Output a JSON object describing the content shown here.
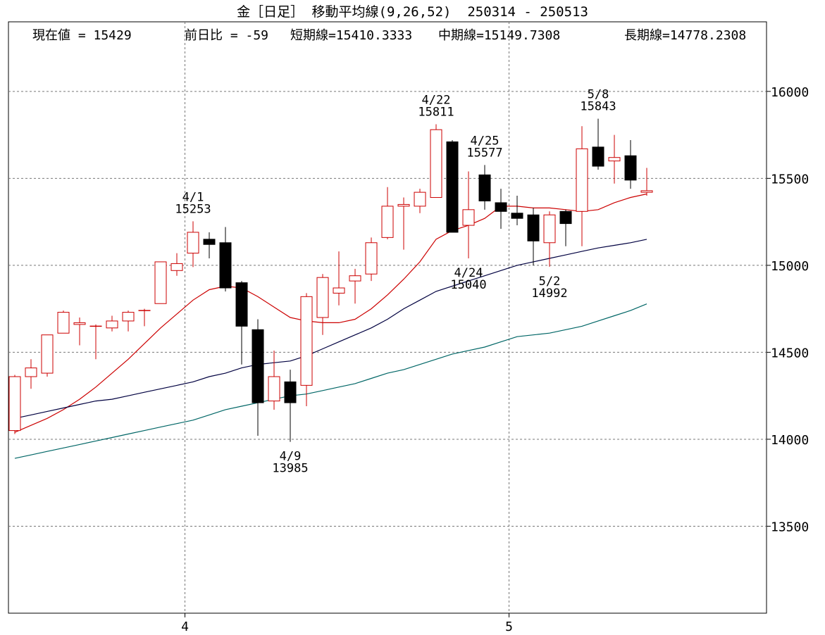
{
  "header": {
    "title": "金［日足］ 移動平均線(9,26,52)  250314 - 250513",
    "current_value": "現在値 = 15429",
    "prev_diff": "前日比 = -59",
    "short_ma": "短期線=15410.3333",
    "mid_ma": "中期線=15149.7308",
    "long_ma": "長期線=14778.2308"
  },
  "colors": {
    "up_candle": "#cc0000",
    "down_candle": "#000000",
    "short_ma": "#cc0000",
    "mid_ma": "#000040",
    "long_ma": "#006666",
    "grid": "#777777"
  },
  "chart_data": {
    "type": "candlestick",
    "ylim": [
      13000,
      16400
    ],
    "ytick_values": [
      13500,
      14000,
      14500,
      15000,
      15500,
      16000
    ],
    "ytick_labels": [
      "13500",
      "14000",
      "14500",
      "15000",
      "15500",
      "16000"
    ],
    "month_labels": [
      {
        "index": 10.5,
        "label": "4"
      },
      {
        "index": 30.5,
        "label": "5"
      }
    ],
    "candles": [
      {
        "o": 14050,
        "h": 14370,
        "l": 14030,
        "c": 14360
      },
      {
        "o": 14360,
        "h": 14460,
        "l": 14290,
        "c": 14410
      },
      {
        "o": 14380,
        "h": 14600,
        "l": 14360,
        "c": 14600
      },
      {
        "o": 14610,
        "h": 14740,
        "l": 14610,
        "c": 14730
      },
      {
        "o": 14660,
        "h": 14700,
        "l": 14540,
        "c": 14670
      },
      {
        "o": 14650,
        "h": 14660,
        "l": 14460,
        "c": 14650
      },
      {
        "o": 14640,
        "h": 14710,
        "l": 14620,
        "c": 14680
      },
      {
        "o": 14680,
        "h": 14740,
        "l": 14620,
        "c": 14730
      },
      {
        "o": 14740,
        "h": 14750,
        "l": 14650,
        "c": 14740
      },
      {
        "o": 14780,
        "h": 15020,
        "l": 14780,
        "c": 15020
      },
      {
        "o": 14970,
        "h": 15070,
        "l": 14940,
        "c": 15010
      },
      {
        "o": 15070,
        "h": 15253,
        "l": 14990,
        "c": 15190
      },
      {
        "o": 15150,
        "h": 15190,
        "l": 15040,
        "c": 15120
      },
      {
        "o": 15130,
        "h": 15220,
        "l": 14850,
        "c": 14870
      },
      {
        "o": 14900,
        "h": 14910,
        "l": 14430,
        "c": 14650
      },
      {
        "o": 14630,
        "h": 14690,
        "l": 14020,
        "c": 14210
      },
      {
        "o": 14220,
        "h": 14510,
        "l": 14170,
        "c": 14360
      },
      {
        "o": 14330,
        "h": 14400,
        "l": 13985,
        "c": 14210
      },
      {
        "o": 14310,
        "h": 14840,
        "l": 14190,
        "c": 14820
      },
      {
        "o": 14700,
        "h": 14950,
        "l": 14600,
        "c": 14930
      },
      {
        "o": 14840,
        "h": 15080,
        "l": 14770,
        "c": 14870
      },
      {
        "o": 14910,
        "h": 14980,
        "l": 14780,
        "c": 14940
      },
      {
        "o": 14950,
        "h": 15160,
        "l": 14910,
        "c": 15130
      },
      {
        "o": 15160,
        "h": 15450,
        "l": 15150,
        "c": 15340
      },
      {
        "o": 15340,
        "h": 15390,
        "l": 15090,
        "c": 15350
      },
      {
        "o": 15340,
        "h": 15440,
        "l": 15300,
        "c": 15420
      },
      {
        "o": 15390,
        "h": 15811,
        "l": 15390,
        "c": 15780
      },
      {
        "o": 15710,
        "h": 15720,
        "l": 15190,
        "c": 15190
      },
      {
        "o": 15230,
        "h": 15540,
        "l": 15040,
        "c": 15320
      },
      {
        "o": 15520,
        "h": 15577,
        "l": 15320,
        "c": 15370
      },
      {
        "o": 15360,
        "h": 15440,
        "l": 15210,
        "c": 15310
      },
      {
        "o": 15300,
        "h": 15400,
        "l": 15230,
        "c": 15270
      },
      {
        "o": 15290,
        "h": 15330,
        "l": 15000,
        "c": 15140
      },
      {
        "o": 15130,
        "h": 15310,
        "l": 14992,
        "c": 15290
      },
      {
        "o": 15310,
        "h": 15320,
        "l": 15110,
        "c": 15240
      },
      {
        "o": 15310,
        "h": 15800,
        "l": 15110,
        "c": 15670
      },
      {
        "o": 15680,
        "h": 15843,
        "l": 15550,
        "c": 15570
      },
      {
        "o": 15600,
        "h": 15750,
        "l": 15470,
        "c": 15620
      },
      {
        "o": 15630,
        "h": 15720,
        "l": 15440,
        "c": 15490
      },
      {
        "o": 15420,
        "h": 15560,
        "l": 15400,
        "c": 15429
      }
    ],
    "series": [
      {
        "name": "短期線",
        "key": "short",
        "values": [
          14040,
          14080,
          14120,
          14170,
          14230,
          14300,
          14380,
          14460,
          14550,
          14640,
          14720,
          14800,
          14860,
          14880,
          14870,
          14820,
          14760,
          14700,
          14680,
          14670,
          14670,
          14690,
          14750,
          14830,
          14920,
          15020,
          15150,
          15200,
          15230,
          15270,
          15340,
          15340,
          15330,
          15330,
          15320,
          15310,
          15320,
          15360,
          15390,
          15410.3333
        ]
      },
      {
        "name": "中期線",
        "key": "mid",
        "values": [
          14120,
          14140,
          14160,
          14180,
          14200,
          14220,
          14230,
          14250,
          14270,
          14290,
          14310,
          14330,
          14360,
          14380,
          14410,
          14430,
          14440,
          14450,
          14480,
          14520,
          14560,
          14600,
          14640,
          14690,
          14750,
          14800,
          14850,
          14880,
          14910,
          14940,
          14970,
          15000,
          15020,
          15040,
          15060,
          15080,
          15100,
          15115,
          15130,
          15149.7308
        ]
      },
      {
        "name": "長期線",
        "key": "long",
        "values": [
          13890,
          13910,
          13930,
          13950,
          13970,
          13990,
          14010,
          14030,
          14050,
          14070,
          14090,
          14110,
          14140,
          14170,
          14190,
          14210,
          14230,
          14250,
          14260,
          14280,
          14300,
          14320,
          14350,
          14380,
          14400,
          14430,
          14460,
          14490,
          14510,
          14530,
          14560,
          14590,
          14600,
          14610,
          14630,
          14650,
          14680,
          14710,
          14740,
          14778.2308
        ]
      }
    ],
    "annotations": [
      {
        "index": 11,
        "date": "4/1",
        "value": "15253",
        "pos": "above"
      },
      {
        "index": 17,
        "date": "4/9",
        "value": "13985",
        "pos": "below"
      },
      {
        "index": 26,
        "date": "4/22",
        "value": "15811",
        "pos": "above"
      },
      {
        "index": 28,
        "date": "4/24",
        "value": "15040",
        "pos": "below"
      },
      {
        "index": 29,
        "date": "4/25",
        "value": "15577",
        "pos": "above"
      },
      {
        "index": 33,
        "date": "5/2",
        "value": "14992",
        "pos": "below"
      },
      {
        "index": 36,
        "date": "5/8",
        "value": "15843",
        "pos": "above"
      }
    ]
  }
}
